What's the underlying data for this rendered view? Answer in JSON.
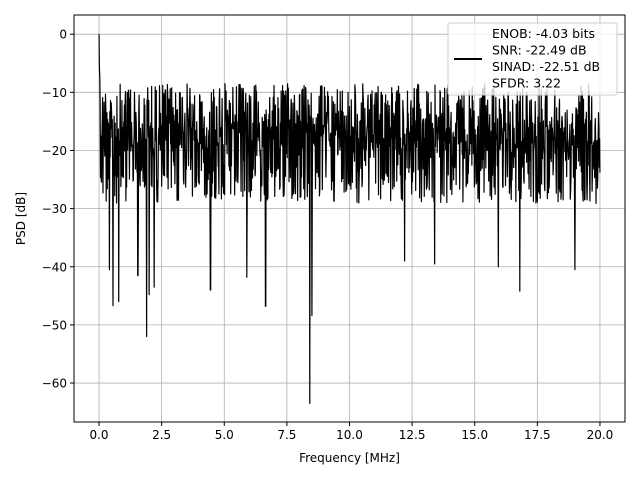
{
  "chart_data": {
    "type": "line",
    "title": "",
    "xlabel": "Frequency [MHz]",
    "ylabel": "PSD [dB]",
    "xlim": [
      -1.0,
      21.0
    ],
    "ylim": [
      -66.7,
      3.3
    ],
    "xticks": [
      0.0,
      2.5,
      5.0,
      7.5,
      10.0,
      12.5,
      15.0,
      17.5,
      20.0
    ],
    "xtick_labels": [
      "0.0",
      "2.5",
      "5.0",
      "7.5",
      "10.0",
      "12.5",
      "15.0",
      "17.5",
      "20.0"
    ],
    "yticks": [
      0,
      -10,
      -20,
      -30,
      -40,
      -50,
      -60
    ],
    "ytick_labels": [
      "0",
      "−10",
      "−20",
      "−30",
      "−40",
      "−50",
      "−60"
    ],
    "grid": true,
    "legend_position": "top-right",
    "legend": {
      "lines": [
        "ENOB: -4.03 bits",
        "SNR: -22.49 dB",
        "SINAD: -22.51 dB",
        "SFDR: 3.22"
      ]
    },
    "series": [
      {
        "color": "#000000",
        "x_range": [
          0.0,
          20.0
        ],
        "noise_floor_db": -20.0,
        "peak_db": 0.0,
        "upper_envelope_db": -8.5,
        "lower_envelope_db": -30.0,
        "minima": [
          {
            "x": 0.42,
            "y": -40.5
          },
          {
            "x": 0.55,
            "y": -46.7
          },
          {
            "x": 0.78,
            "y": -46.0
          },
          {
            "x": 1.55,
            "y": -41.5
          },
          {
            "x": 1.9,
            "y": -52.0
          },
          {
            "x": 2.0,
            "y": -44.8
          },
          {
            "x": 2.2,
            "y": -43.5
          },
          {
            "x": 4.45,
            "y": -44.0
          },
          {
            "x": 5.9,
            "y": -41.8
          },
          {
            "x": 6.65,
            "y": -46.8
          },
          {
            "x": 8.42,
            "y": -63.5
          },
          {
            "x": 8.5,
            "y": -48.4
          },
          {
            "x": 12.2,
            "y": -39.0
          },
          {
            "x": 13.4,
            "y": -39.5
          },
          {
            "x": 15.95,
            "y": -40.0
          },
          {
            "x": 16.8,
            "y": -44.2
          },
          {
            "x": 19.0,
            "y": -40.5
          }
        ]
      }
    ]
  }
}
